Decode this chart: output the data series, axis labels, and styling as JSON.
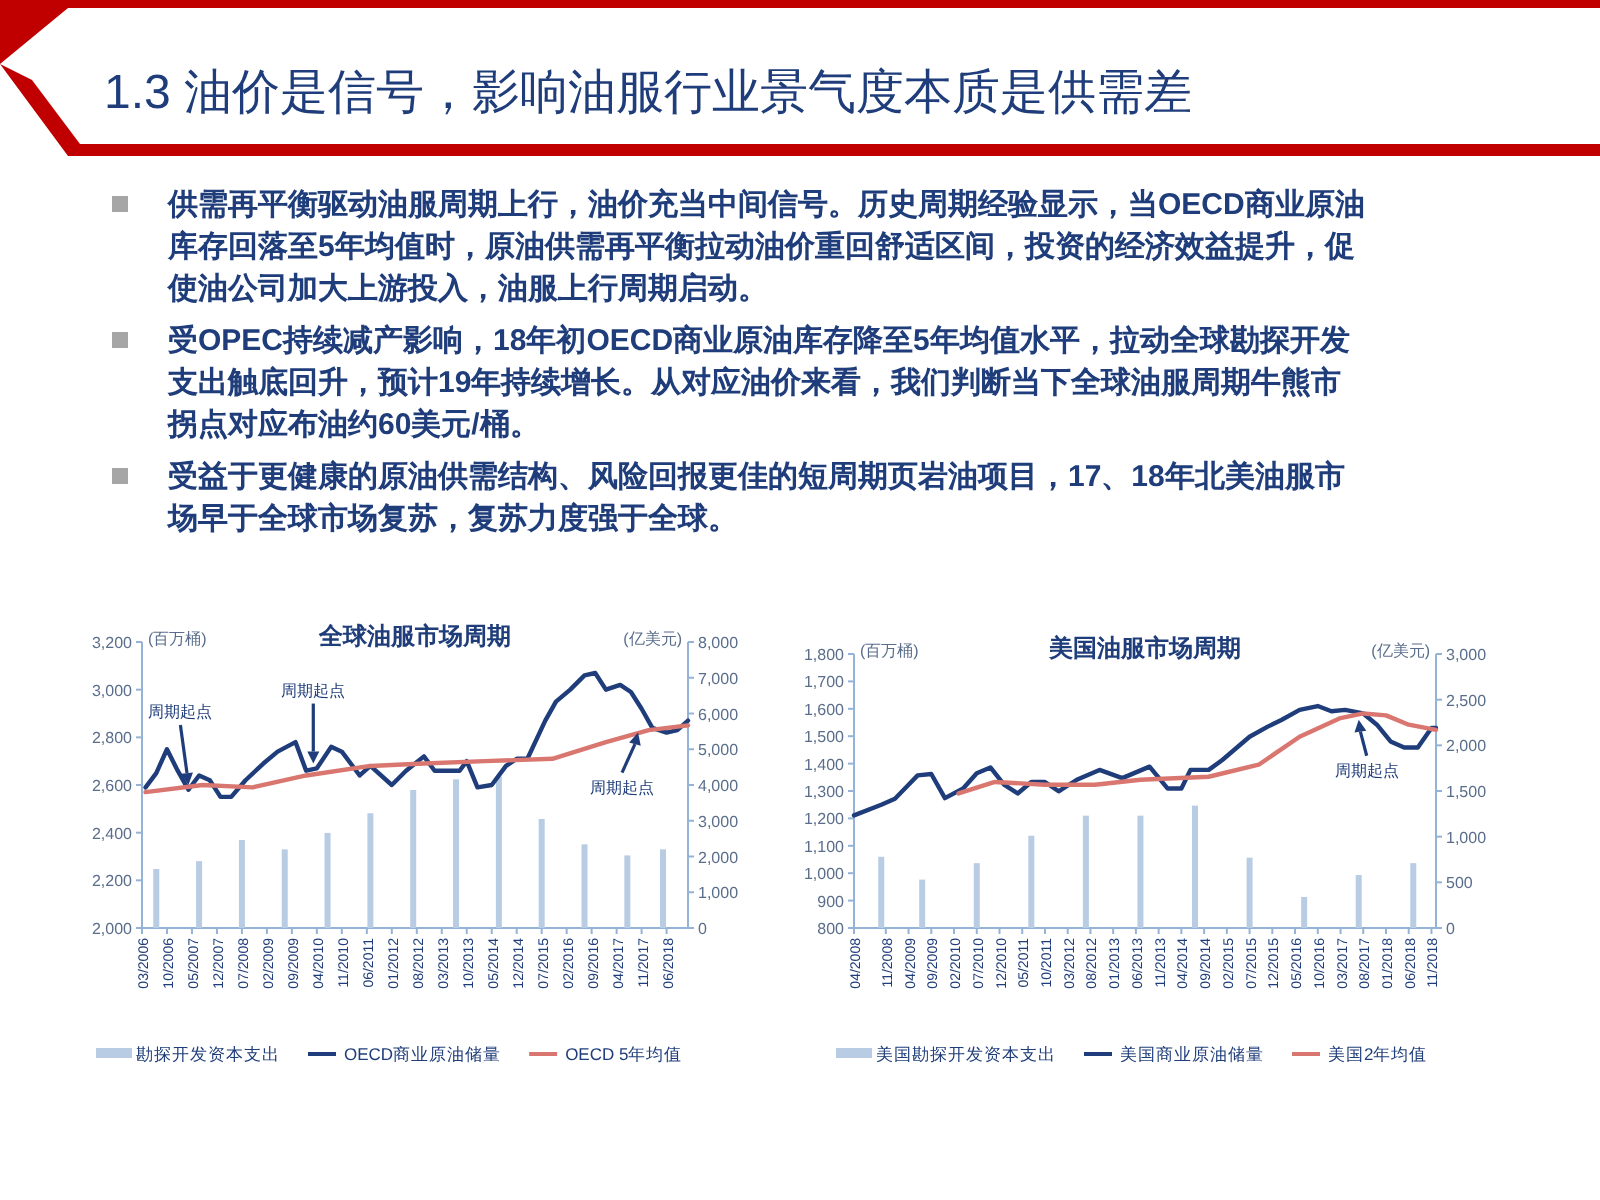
{
  "chart_data": [
    {
      "type": "other",
      "title": "1.3 油价是信号，影响油服行业景气度本质是供需差",
      "annotations": [
        "供需再平衡驱动油服周期上行，油价充当中间信号。历史周期经验显示，当OECD商业原油库存回落至5年均值时，原油供需再平衡拉动油价重回舒适区间，投资的经济效益提升，促使油公司加大上游投入，油服上行周期启动。",
        "受OPEC持续减产影响，18年初OECD商业原油库存降至5年均值水平，拉动全球勘探开发支出触底回升，预计19年持续增长。从对应油价来看，我们判断当下全球油服周期牛熊市拐点对应布油约60美元/桶。",
        "受益于更健康的原油供需结构、风险回报更佳的短周期页岩油项目，17、18年北美油服市场早于全球市场复苏，复苏力度强于全球。"
      ]
    },
    {
      "type": "line",
      "title": "全球油服市场周期",
      "ylabel": "(百万桶)",
      "y2label": "(亿美元)",
      "legend": "bottom",
      "xlim": [
        "2006-03",
        "2018-12"
      ],
      "ylim": [
        2000,
        3200
      ],
      "y2lim": [
        0,
        8000
      ],
      "xticks": [
        {
          "value": "2006-03",
          "label": "03/2006"
        },
        {
          "value": "2006-10",
          "label": "10/2006"
        },
        {
          "value": "2007-05",
          "label": "05/2007"
        },
        {
          "value": "2007-12",
          "label": "12/2007"
        },
        {
          "value": "2008-07",
          "label": "07/2008"
        },
        {
          "value": "2009-02",
          "label": "02/2009"
        },
        {
          "value": "2009-09",
          "label": "09/2009"
        },
        {
          "value": "2010-04",
          "label": "04/2010"
        },
        {
          "value": "2010-11",
          "label": "11/2010"
        },
        {
          "value": "2011-06",
          "label": "06/2011"
        },
        {
          "value": "2012-01",
          "label": "01/2012"
        },
        {
          "value": "2012-08",
          "label": "08/2012"
        },
        {
          "value": "2013-03",
          "label": "03/2013"
        },
        {
          "value": "2013-10",
          "label": "10/2013"
        },
        {
          "value": "2014-05",
          "label": "05/2014"
        },
        {
          "value": "2014-12",
          "label": "12/2014"
        },
        {
          "value": "2015-07",
          "label": "07/2015"
        },
        {
          "value": "2016-02",
          "label": "02/2016"
        },
        {
          "value": "2016-09",
          "label": "09/2016"
        },
        {
          "value": "2017-04",
          "label": "04/2017"
        },
        {
          "value": "2017-11",
          "label": "11/2017"
        },
        {
          "value": "2018-06",
          "label": "06/2018"
        }
      ],
      "yticks": [
        {
          "value": 2000,
          "label": "2,000"
        },
        {
          "value": 2200,
          "label": "2,200"
        },
        {
          "value": 2400,
          "label": "2,400"
        },
        {
          "value": 2600,
          "label": "2,600"
        },
        {
          "value": 2800,
          "label": "2,800"
        },
        {
          "value": 3000,
          "label": "3,000"
        },
        {
          "value": 3200,
          "label": "3,200"
        }
      ],
      "y2ticks": [
        {
          "value": 0,
          "label": "0"
        },
        {
          "value": 1000,
          "label": "1,000"
        },
        {
          "value": 2000,
          "label": "2,000"
        },
        {
          "value": 3000,
          "label": "3,000"
        },
        {
          "value": 4000,
          "label": "4,000"
        },
        {
          "value": 5000,
          "label": "5,000"
        },
        {
          "value": 6000,
          "label": "6,000"
        },
        {
          "value": 7000,
          "label": "7,000"
        },
        {
          "value": 8000,
          "label": "8,000"
        }
      ],
      "series": [
        {
          "name": "勘探开发资本支出",
          "type": "bar",
          "axis": "y2",
          "color": "#b8cce4",
          "x": [
            "2006-07",
            "2007-07",
            "2008-07",
            "2009-07",
            "2010-07",
            "2011-07",
            "2012-07",
            "2013-07",
            "2014-07",
            "2015-07",
            "2016-07",
            "2017-07",
            "2018-05"
          ],
          "values": [
            1650,
            1870,
            2460,
            2200,
            2660,
            3210,
            3860,
            4160,
            4240,
            3050,
            2340,
            2030,
            2200
          ]
        },
        {
          "name": "OECD商业原油储量",
          "type": "line",
          "color": "#1f3d7a",
          "x": [
            "2006-04",
            "2006-07",
            "2006-10",
            "2007-01",
            "2007-04",
            "2007-07",
            "2007-10",
            "2008-01",
            "2008-04",
            "2008-08",
            "2009-01",
            "2009-05",
            "2009-10",
            "2010-01",
            "2010-04",
            "2010-08",
            "2010-11",
            "2011-04",
            "2011-07",
            "2012-01",
            "2012-05",
            "2012-10",
            "2013-01",
            "2013-08",
            "2013-10",
            "2014-01",
            "2014-05",
            "2014-09",
            "2014-12",
            "2015-03",
            "2015-08",
            "2015-11",
            "2016-03",
            "2016-07",
            "2016-10",
            "2017-01",
            "2017-05",
            "2017-08",
            "2017-11",
            "2018-02",
            "2018-06",
            "2018-09",
            "2018-12"
          ],
          "values": [
            2590,
            2650,
            2750,
            2660,
            2580,
            2640,
            2620,
            2550,
            2550,
            2620,
            2690,
            2740,
            2780,
            2660,
            2670,
            2760,
            2740,
            2640,
            2680,
            2600,
            2660,
            2720,
            2660,
            2660,
            2700,
            2590,
            2600,
            2680,
            2710,
            2710,
            2870,
            2950,
            3000,
            3060,
            3070,
            3000,
            3020,
            2990,
            2920,
            2840,
            2820,
            2830,
            2870
          ]
        },
        {
          "name": "OECD 5年均值",
          "type": "line",
          "color": "#d9766f",
          "x": [
            "2006-04",
            "2007-08",
            "2008-10",
            "2010-01",
            "2011-07",
            "2012-10",
            "2014-03",
            "2015-10",
            "2017-01",
            "2018-01",
            "2018-12"
          ],
          "values": [
            2570,
            2600,
            2590,
            2640,
            2680,
            2690,
            2700,
            2710,
            2780,
            2830,
            2850
          ]
        }
      ],
      "annotations": [
        {
          "text": "周期起点",
          "x": "2007-04",
          "y": 2600
        },
        {
          "text": "周期起点",
          "x": "2010-03",
          "y": 2690
        },
        {
          "text": "周期起点",
          "x": "2017-10",
          "y": 2820
        }
      ]
    },
    {
      "type": "line",
      "title": "美国油服市场周期",
      "ylabel": "(百万桶)",
      "y2label": "(亿美元)",
      "legend": "bottom",
      "xlim": [
        "2008-04",
        "2018-12"
      ],
      "ylim": [
        800,
        1800
      ],
      "y2lim": [
        0,
        3000
      ],
      "xticks": [
        {
          "value": "2008-04",
          "label": "04/2008"
        },
        {
          "value": "2008-11",
          "label": "11/2008"
        },
        {
          "value": "2009-04",
          "label": "04/2009"
        },
        {
          "value": "2009-09",
          "label": "09/2009"
        },
        {
          "value": "2010-02",
          "label": "02/2010"
        },
        {
          "value": "2010-07",
          "label": "07/2010"
        },
        {
          "value": "2010-12",
          "label": "12/2010"
        },
        {
          "value": "2011-05",
          "label": "05/2011"
        },
        {
          "value": "2011-10",
          "label": "10/2011"
        },
        {
          "value": "2012-03",
          "label": "03/2012"
        },
        {
          "value": "2012-08",
          "label": "08/2012"
        },
        {
          "value": "2013-01",
          "label": "01/2013"
        },
        {
          "value": "2013-06",
          "label": "06/2013"
        },
        {
          "value": "2013-11",
          "label": "11/2013"
        },
        {
          "value": "2014-04",
          "label": "04/2014"
        },
        {
          "value": "2014-09",
          "label": "09/2014"
        },
        {
          "value": "2015-02",
          "label": "02/2015"
        },
        {
          "value": "2015-07",
          "label": "07/2015"
        },
        {
          "value": "2015-12",
          "label": "12/2015"
        },
        {
          "value": "2016-05",
          "label": "05/2016"
        },
        {
          "value": "2016-10",
          "label": "10/2016"
        },
        {
          "value": "2017-03",
          "label": "03/2017"
        },
        {
          "value": "2017-08",
          "label": "08/2017"
        },
        {
          "value": "2018-01",
          "label": "01/2018"
        },
        {
          "value": "2018-06",
          "label": "06/2018"
        },
        {
          "value": "2018-11",
          "label": "11/2018"
        }
      ],
      "yticks": [
        {
          "value": 800,
          "label": "800"
        },
        {
          "value": 900,
          "label": "900"
        },
        {
          "value": 1000,
          "label": "1,000"
        },
        {
          "value": 1100,
          "label": "1,100"
        },
        {
          "value": 1200,
          "label": "1,200"
        },
        {
          "value": 1300,
          "label": "1,300"
        },
        {
          "value": 1400,
          "label": "1,400"
        },
        {
          "value": 1500,
          "label": "1,500"
        },
        {
          "value": 1600,
          "label": "1,600"
        },
        {
          "value": 1700,
          "label": "1,700"
        },
        {
          "value": 1800,
          "label": "1,800"
        }
      ],
      "y2ticks": [
        {
          "value": 0,
          "label": "0"
        },
        {
          "value": 500,
          "label": "500"
        },
        {
          "value": 1000,
          "label": "1,000"
        },
        {
          "value": 1500,
          "label": "1,500"
        },
        {
          "value": 2000,
          "label": "2,000"
        },
        {
          "value": 2500,
          "label": "2,500"
        },
        {
          "value": 3000,
          "label": "3,000"
        }
      ],
      "series": [
        {
          "name": "美国勘探开发资本支出",
          "type": "bar",
          "axis": "y2",
          "color": "#b8cce4",
          "x": [
            "2008-10",
            "2009-07",
            "2010-07",
            "2011-07",
            "2012-07",
            "2013-07",
            "2014-07",
            "2015-07",
            "2016-07",
            "2017-07",
            "2018-07"
          ],
          "values": [
            780,
            530,
            710,
            1010,
            1230,
            1230,
            1340,
            770,
            340,
            580,
            710
          ]
        },
        {
          "name": "美国商业原油储量",
          "type": "line",
          "color": "#1f3d7a",
          "x": [
            "2008-04",
            "2008-10",
            "2009-01",
            "2009-04",
            "2009-06",
            "2009-09",
            "2009-12",
            "2010-04",
            "2010-07",
            "2010-10",
            "2011-01",
            "2011-04",
            "2011-07",
            "2011-10",
            "2012-01",
            "2012-05",
            "2012-10",
            "2013-03",
            "2013-09",
            "2014-01",
            "2014-04",
            "2014-06",
            "2014-10",
            "2015-01",
            "2015-07",
            "2015-11",
            "2016-02",
            "2016-06",
            "2016-10",
            "2017-01",
            "2017-04",
            "2017-08",
            "2017-11",
            "2018-02",
            "2018-05",
            "2018-08",
            "2018-11",
            "2018-12"
          ],
          "values": [
            1211,
            1250,
            1272,
            1323,
            1357,
            1362,
            1274,
            1309,
            1365,
            1386,
            1323,
            1291,
            1333,
            1333,
            1299,
            1341,
            1377,
            1347,
            1389,
            1309,
            1309,
            1377,
            1377,
            1413,
            1498,
            1535,
            1559,
            1596,
            1610,
            1591,
            1596,
            1583,
            1542,
            1481,
            1459,
            1459,
            1530,
            1530
          ]
        },
        {
          "name": "美国2年均值",
          "type": "line",
          "color": "#d9766f",
          "x": [
            "2010-03",
            "2010-11",
            "2011-10",
            "2012-09",
            "2013-07",
            "2014-10",
            "2015-09",
            "2016-06",
            "2017-03",
            "2017-08",
            "2018-01",
            "2018-06",
            "2018-12"
          ],
          "values": [
            1291,
            1333,
            1323,
            1323,
            1341,
            1352,
            1396,
            1498,
            1566,
            1583,
            1576,
            1542,
            1523
          ]
        }
      ],
      "annotations": [
        {
          "text": "周期起点",
          "x": "2017-07",
          "y": 1560
        }
      ]
    }
  ]
}
